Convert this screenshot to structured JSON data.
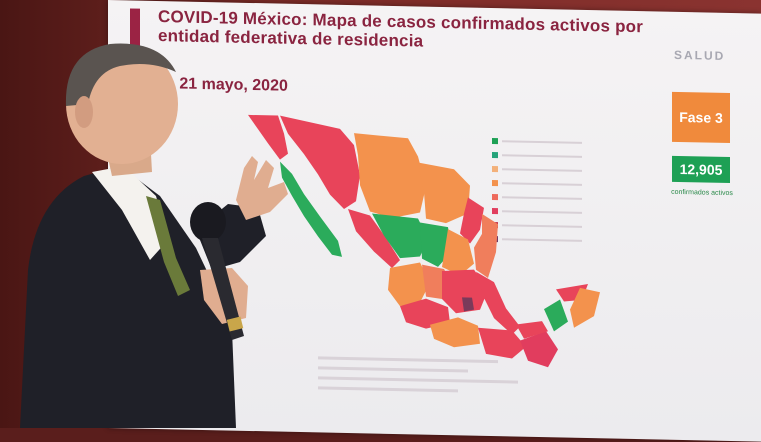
{
  "slide": {
    "title": "COVID-19 México: Mapa de casos confirmados activos por entidad federativa de residencia",
    "date": "– 21 mayo, 2020",
    "logo": "SALUD",
    "phase": "Fase 3",
    "active_count": "12,905",
    "active_caption": "confirmados activos"
  },
  "colors": {
    "accent": "#9b2344",
    "phase_orange": "#f08a3c",
    "count_green": "#1ea055",
    "map_green": "#2bab5b",
    "map_orange": "#f3924d",
    "map_salmon": "#f07e5c",
    "map_red": "#e8445a",
    "map_dark": "#7a3a5a"
  },
  "legend_swatches": [
    "#1ea055",
    "#25a37a",
    "#f3b07a",
    "#f3924d",
    "#ee6a5c",
    "#e13d5e",
    "#c0304a",
    "#6e3a66"
  ],
  "icons": [
    "microphone-icon"
  ]
}
